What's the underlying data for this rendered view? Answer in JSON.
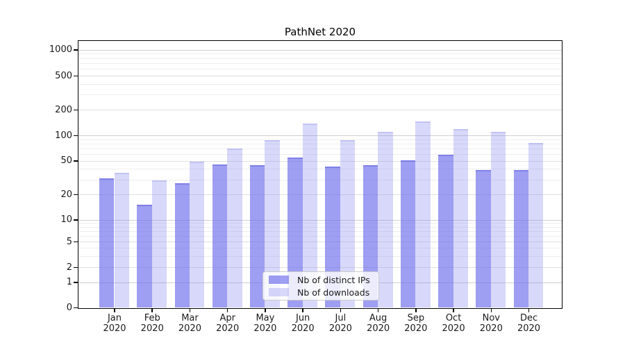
{
  "title": "PathNet 2020",
  "legend": {
    "items": [
      {
        "label": "Nb of distinct IPs"
      },
      {
        "label": "Nb of downloads"
      }
    ]
  },
  "colors": {
    "ips_bar": "rgba(108,108,235,0.66)",
    "downloads_bar": "rgba(140,140,240,0.34)",
    "ips_bar_solid": "#9e9ef1",
    "downloads_bar_solid": "#d8d8fa",
    "grid_power10": "#cfcfcf",
    "grid_labeled": "#dfdfdf",
    "grid_minor": "#ededed",
    "axis": "#000000",
    "text": "#1a1a1a"
  },
  "y_axis": {
    "tick_labels": [
      "1000",
      "500",
      "200",
      "100",
      "50",
      "20",
      "10",
      "5",
      "2",
      "1",
      "0"
    ]
  },
  "x_axis": {
    "year": "2020",
    "months": [
      "Jan",
      "Feb",
      "Mar",
      "Apr",
      "May",
      "Jun",
      "Jul",
      "Aug",
      "Sep",
      "Oct",
      "Nov",
      "Dec"
    ]
  },
  "chart_data": {
    "type": "bar",
    "title": "PathNet 2020",
    "categories": [
      "Jan 2020",
      "Feb 2020",
      "Mar 2020",
      "Apr 2020",
      "May 2020",
      "Jun 2020",
      "Jul 2020",
      "Aug 2020",
      "Sep 2020",
      "Oct 2020",
      "Nov 2020",
      "Dec 2020"
    ],
    "series": [
      {
        "name": "Nb of distinct IPs",
        "values": [
          31,
          15,
          27,
          45,
          44,
          55,
          43,
          44,
          51,
          59,
          39,
          39
        ]
      },
      {
        "name": "Nb of downloads",
        "values": [
          36,
          29,
          49,
          70,
          87,
          138,
          87,
          110,
          146,
          118,
          110,
          81
        ]
      }
    ],
    "yscale": "symlog",
    "yticks": [
      0,
      1,
      2,
      5,
      10,
      20,
      50,
      100,
      200,
      500,
      1000
    ],
    "ylim": [
      0,
      1300
    ],
    "grid": true,
    "legend_position": "lower center"
  }
}
